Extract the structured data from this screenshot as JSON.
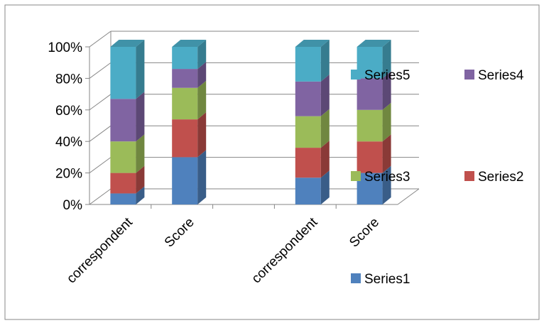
{
  "chart_data": {
    "type": "bar",
    "stacked": "percent",
    "three_d": true,
    "categories": [
      "correspondent",
      "Score",
      "",
      "correspondent",
      "Score"
    ],
    "series": [
      {
        "name": "Series1",
        "color": "#4F81BD",
        "values": [
          7,
          30,
          null,
          17,
          20
        ]
      },
      {
        "name": "Series2",
        "color": "#C0504D",
        "values": [
          13,
          24,
          null,
          19,
          20
        ]
      },
      {
        "name": "Series3",
        "color": "#9BBB59",
        "values": [
          20,
          20,
          null,
          20,
          20
        ]
      },
      {
        "name": "Series4",
        "color": "#8064A2",
        "values": [
          27,
          12,
          null,
          22,
          20
        ]
      },
      {
        "name": "Series5",
        "color": "#4BACC6",
        "values": [
          33,
          14,
          null,
          22,
          20
        ]
      }
    ],
    "ylim": [
      0,
      100
    ],
    "ytick_labels": [
      "0%",
      "20%",
      "40%",
      "60%",
      "80%",
      "100%"
    ],
    "grid": true,
    "legend": "right"
  }
}
